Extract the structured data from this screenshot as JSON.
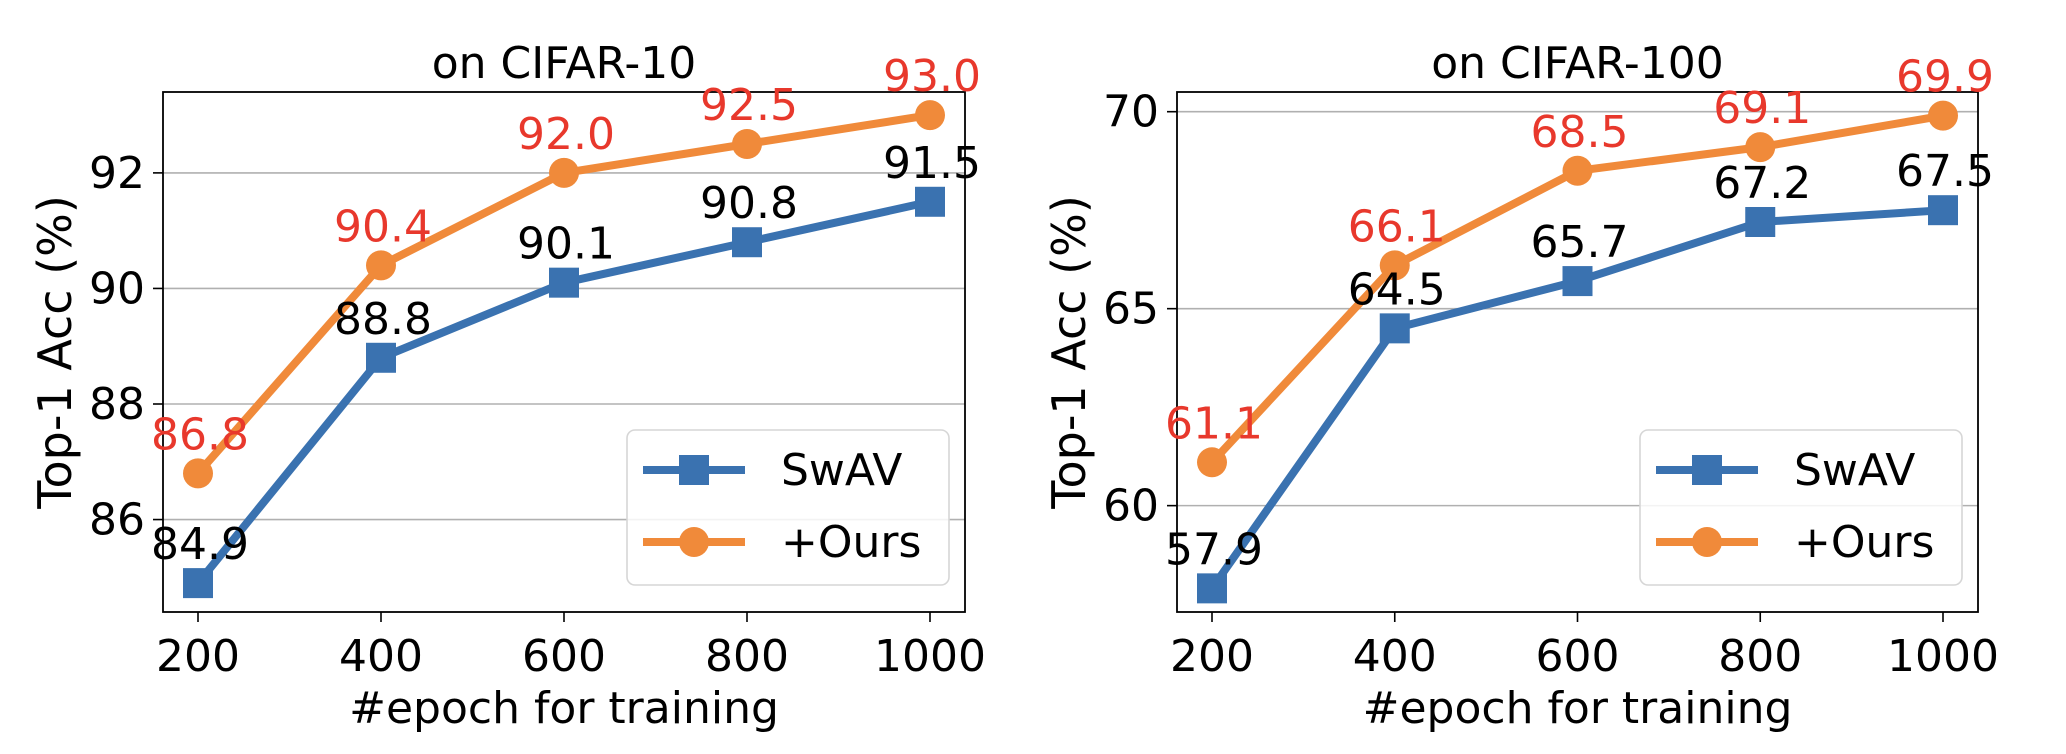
{
  "chart_data": [
    {
      "type": "line",
      "title": "on CIFAR-10",
      "xlabel": "#epoch for training",
      "ylabel": "Top-1 Acc (%)",
      "x": [
        200,
        400,
        600,
        800,
        1000
      ],
      "xticks": [
        "200",
        "400",
        "600",
        "800",
        "1000"
      ],
      "yticks": [
        86,
        88,
        90,
        92
      ],
      "ylim": [
        84.4,
        93.4
      ],
      "grid": "horizontal",
      "legend_position": "lower-right",
      "series": [
        {
          "name": "SwAV",
          "marker": "square",
          "color": "#3a72b0",
          "label_color": "#000000",
          "values": [
            84.9,
            88.8,
            90.1,
            90.8,
            91.5
          ],
          "labels": [
            "84.9",
            "88.8",
            "90.1",
            "90.8",
            "91.5"
          ]
        },
        {
          "name": "+Ours",
          "marker": "circle",
          "color": "#f08a3a",
          "label_color": "#e8382c",
          "values": [
            86.8,
            90.4,
            92.0,
            92.5,
            93.0
          ],
          "labels": [
            "86.8",
            "90.4",
            "92.0",
            "92.5",
            "93.0"
          ]
        }
      ]
    },
    {
      "type": "line",
      "title": "on CIFAR-100",
      "xlabel": "#epoch for training",
      "ylabel": "Top-1 Acc (%)",
      "x": [
        200,
        400,
        600,
        800,
        1000
      ],
      "xticks": [
        "200",
        "400",
        "600",
        "800",
        "1000"
      ],
      "yticks": [
        60,
        65,
        70
      ],
      "ylim": [
        57.3,
        70.5
      ],
      "grid": "horizontal",
      "legend_position": "lower-right",
      "series": [
        {
          "name": "SwAV",
          "marker": "square",
          "color": "#3a72b0",
          "label_color": "#000000",
          "values": [
            57.9,
            64.5,
            65.7,
            67.2,
            67.5
          ],
          "labels": [
            "57.9",
            "64.5",
            "65.7",
            "67.2",
            "67.5"
          ]
        },
        {
          "name": "+Ours",
          "marker": "circle",
          "color": "#f08a3a",
          "label_color": "#e8382c",
          "values": [
            61.1,
            66.1,
            68.5,
            69.1,
            69.9
          ],
          "labels": [
            "61.1",
            "66.1",
            "68.5",
            "69.1",
            "69.9"
          ]
        }
      ]
    }
  ]
}
